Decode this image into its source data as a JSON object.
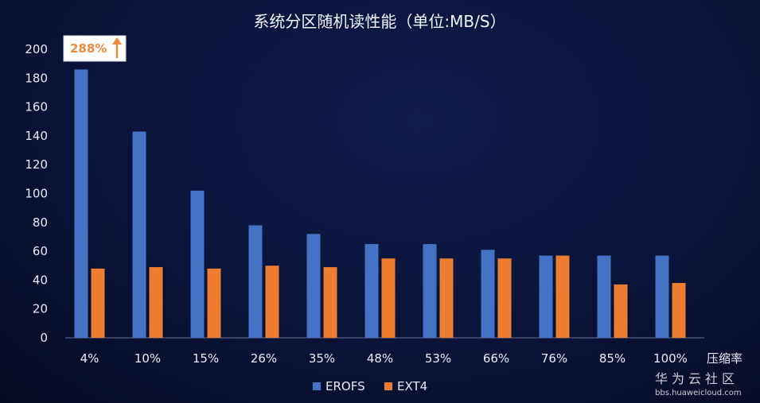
{
  "chart_data": {
    "type": "bar",
    "title": "系统分区随机读性能（单位:MB/S）",
    "xlabel": "压缩率",
    "ylabel": "",
    "ylim": [
      0,
      200
    ],
    "yticks": [
      0,
      20,
      40,
      60,
      80,
      100,
      120,
      140,
      160,
      180,
      200
    ],
    "categories": [
      "4%",
      "10%",
      "15%",
      "26%",
      "35%",
      "48%",
      "53%",
      "66%",
      "76%",
      "85%",
      "100%"
    ],
    "series": [
      {
        "name": "EROFS",
        "color": "#4472c4",
        "values": [
          186,
          143,
          102,
          78,
          72,
          65,
          65,
          61,
          57,
          57,
          57
        ]
      },
      {
        "name": "EXT4",
        "color": "#ed7d31",
        "values": [
          48,
          49,
          48,
          50,
          49,
          55,
          55,
          55,
          57,
          37,
          38
        ]
      }
    ],
    "grid": false,
    "legend": "bottom",
    "annotation": {
      "text": "288%",
      "category": "4%",
      "series": "EROFS",
      "icon": "arrow-up-icon"
    }
  },
  "watermark": {
    "name": "华为云社区",
    "url": "bbs.huaweicloud.com"
  }
}
